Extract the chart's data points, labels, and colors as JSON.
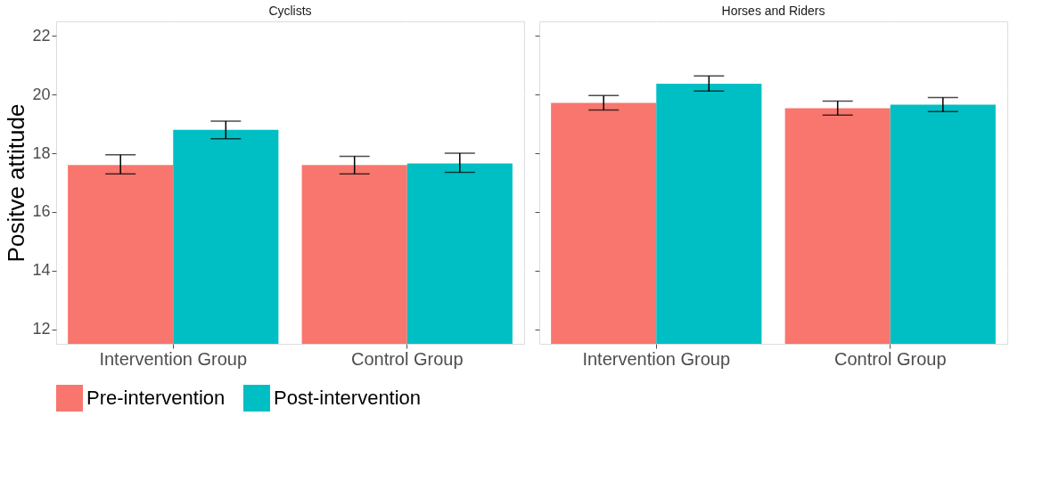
{
  "chart_data": [
    {
      "type": "bar",
      "title": "Cyclists",
      "ylabel": "Positve attitude",
      "categories": [
        "Intervention Group",
        "Control Group"
      ],
      "series": [
        {
          "name": "Pre-intervention",
          "color": "#f8766d",
          "values": [
            17.6,
            17.6
          ],
          "errors": [
            [
              17.3,
              17.95
            ],
            [
              17.3,
              17.9
            ]
          ]
        },
        {
          "name": "Post-intervention",
          "color": "#00bfc4",
          "values": [
            18.8,
            17.65
          ],
          "errors": [
            [
              18.5,
              19.1
            ],
            [
              17.35,
              18.0
            ]
          ]
        }
      ],
      "ylim": [
        11.5,
        22.5
      ],
      "yticks": [
        12,
        14,
        16,
        18,
        20,
        22
      ],
      "grid": true,
      "legend": "bottom"
    },
    {
      "type": "bar",
      "title": "Horses and Riders",
      "categories": [
        "Intervention Group",
        "Control Group"
      ],
      "series": [
        {
          "name": "Pre-intervention",
          "color": "#f8766d",
          "values": [
            19.72,
            19.54
          ],
          "errors": [
            [
              19.48,
              19.97
            ],
            [
              19.3,
              19.78
            ]
          ]
        },
        {
          "name": "Post-intervention",
          "color": "#00bfc4",
          "values": [
            20.37,
            19.66
          ],
          "errors": [
            [
              20.12,
              20.64
            ],
            [
              19.42,
              19.9
            ]
          ]
        }
      ],
      "ylim": [
        11.5,
        22.5
      ],
      "yticks": [
        12,
        14,
        16,
        18,
        20,
        22
      ],
      "grid": true,
      "tick_labels": "x"
    }
  ]
}
